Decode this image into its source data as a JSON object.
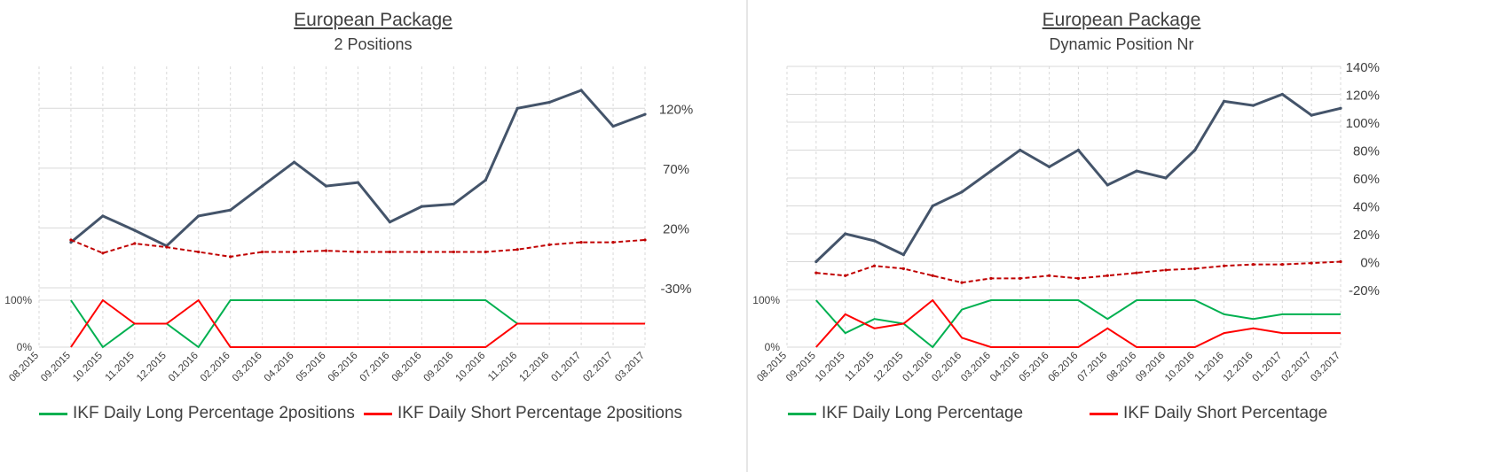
{
  "colors": {
    "cumulative": "#44546a",
    "benchmark": "#c00000",
    "long": "#00b050",
    "short": "#ff0000",
    "grid": "#d9d9d9"
  },
  "x_ticks": [
    "08.2015",
    "09.2015",
    "10.2015",
    "11.2015",
    "12.2015",
    "01.2016",
    "02.2016",
    "03.2016",
    "04.2016",
    "05.2016",
    "06.2016",
    "07.2016",
    "08.2016",
    "09.2016",
    "10.2016",
    "11.2016",
    "12.2016",
    "01.2017",
    "02.2017",
    "03.2017"
  ],
  "chart_data": [
    {
      "type": "line",
      "title": "European Package",
      "subtitle": "2 Positions",
      "x": [
        "08.2015",
        "09.2015",
        "10.2015",
        "11.2015",
        "12.2015",
        "01.2016",
        "02.2016",
        "03.2016",
        "04.2016",
        "05.2016",
        "06.2016",
        "07.2016",
        "08.2016",
        "09.2016",
        "10.2016",
        "11.2016",
        "12.2016",
        "01.2017",
        "02.2017",
        "03.2017"
      ],
      "y_ticks": [
        "120%",
        "70%",
        "20%",
        "-30%"
      ],
      "ylim": [
        -30,
        155
      ],
      "series": [
        {
          "values": [
            null,
            8,
            30,
            18,
            5,
            30,
            35,
            55,
            75,
            55,
            58,
            25,
            38,
            40,
            60,
            120,
            125,
            135,
            105,
            115
          ]
        },
        {
          "values": [
            null,
            10,
            -1,
            7,
            4,
            0,
            -4,
            0,
            0,
            1,
            0,
            0,
            0,
            0,
            0,
            2,
            6,
            8,
            8,
            10
          ]
        }
      ],
      "bottom_panel": {
        "y_ticks": [
          "100%",
          "0%"
        ],
        "series": [
          {
            "name": "IKF Daily Long Percentage 2positions",
            "values": [
              null,
              100,
              0,
              50,
              50,
              0,
              100,
              100,
              100,
              100,
              100,
              100,
              100,
              100,
              100,
              50,
              50,
              50,
              50,
              50
            ]
          },
          {
            "name": "IKF Daily Short Percentage 2positions",
            "values": [
              null,
              0,
              100,
              50,
              50,
              100,
              0,
              0,
              0,
              0,
              0,
              0,
              0,
              0,
              0,
              50,
              50,
              50,
              50,
              50
            ]
          }
        ]
      }
    },
    {
      "type": "line",
      "title": "European Package",
      "subtitle": "Dynamic Position Nr",
      "x": [
        "08.2015",
        "09.2015",
        "10.2015",
        "11.2015",
        "12.2015",
        "01.2016",
        "02.2016",
        "03.2016",
        "04.2016",
        "05.2016",
        "06.2016",
        "07.2016",
        "08.2016",
        "09.2016",
        "10.2016",
        "11.2016",
        "12.2016",
        "01.2017",
        "02.2017",
        "03.2017"
      ],
      "y_ticks": [
        "140%",
        "120%",
        "100%",
        "80%",
        "60%",
        "40%",
        "20%",
        "0%",
        "-20%"
      ],
      "ylim": [
        -20,
        140
      ],
      "series": [
        {
          "values": [
            null,
            0,
            20,
            15,
            5,
            40,
            50,
            65,
            80,
            68,
            80,
            55,
            65,
            60,
            80,
            115,
            112,
            120,
            105,
            110
          ]
        },
        {
          "values": [
            null,
            -8,
            -10,
            -3,
            -5,
            -10,
            -15,
            -12,
            -12,
            -10,
            -12,
            -10,
            -8,
            -6,
            -5,
            -3,
            -2,
            -2,
            -1,
            0
          ]
        }
      ],
      "bottom_panel": {
        "y_ticks": [
          "100%",
          "0%"
        ],
        "series": [
          {
            "name": "IKF Daily Long Percentage",
            "values": [
              null,
              100,
              30,
              60,
              50,
              0,
              80,
              100,
              100,
              100,
              100,
              60,
              100,
              100,
              100,
              70,
              60,
              70,
              70,
              70
            ]
          },
          {
            "name": "IKF Daily Short Percentage",
            "values": [
              null,
              0,
              70,
              40,
              50,
              100,
              20,
              0,
              0,
              0,
              0,
              40,
              0,
              0,
              0,
              30,
              40,
              30,
              30,
              30
            ]
          }
        ]
      }
    }
  ]
}
